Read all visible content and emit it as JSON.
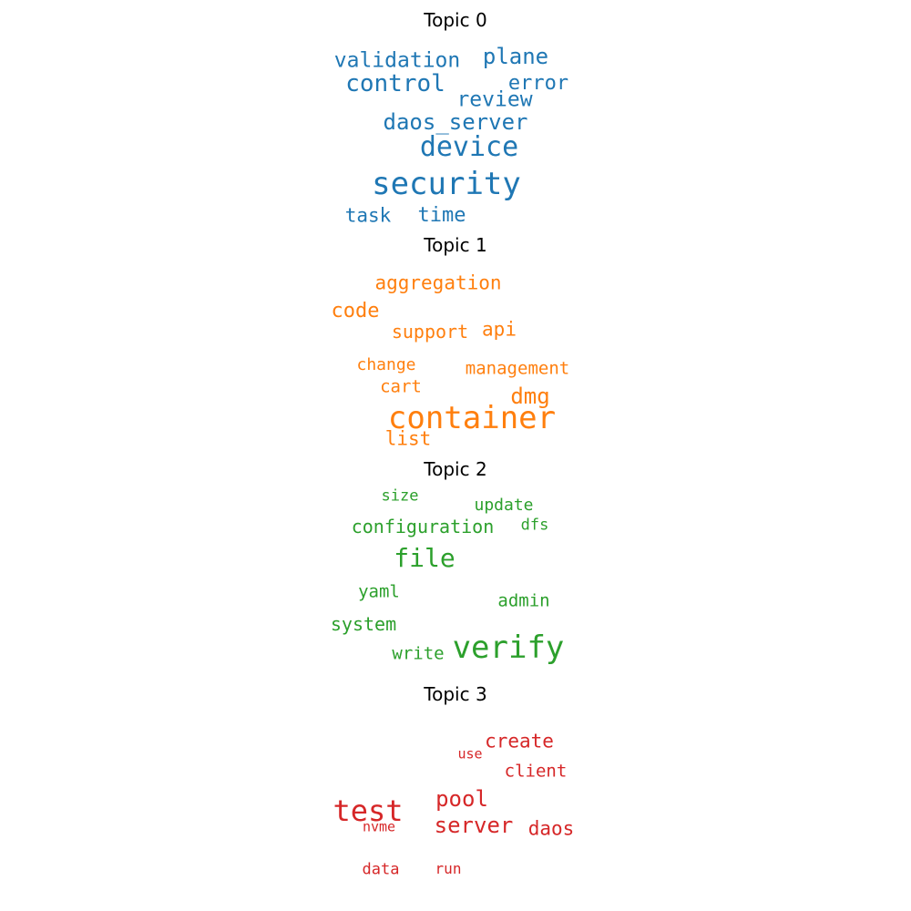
{
  "chart_data": {
    "type": "wordcloud",
    "topics": [
      {
        "title": "Topic 0",
        "color": "#1f77b4",
        "words": [
          "security",
          "device",
          "control",
          "daos_server",
          "plane",
          "validation",
          "review",
          "error",
          "time",
          "task"
        ]
      },
      {
        "title": "Topic 1",
        "color": "#ff7f0e",
        "words": [
          "container",
          "dmg",
          "code",
          "aggregation",
          "list",
          "api",
          "support",
          "cart",
          "management",
          "change"
        ]
      },
      {
        "title": "Topic 2",
        "color": "#2ca02c",
        "words": [
          "verify",
          "file",
          "configuration",
          "system",
          "write",
          "admin",
          "yaml",
          "update",
          "size",
          "dfs"
        ]
      },
      {
        "title": "Topic 3",
        "color": "#d62728",
        "words": [
          "test",
          "pool",
          "server",
          "daos",
          "create",
          "client",
          "data",
          "run",
          "nvme",
          "use"
        ]
      }
    ]
  }
}
